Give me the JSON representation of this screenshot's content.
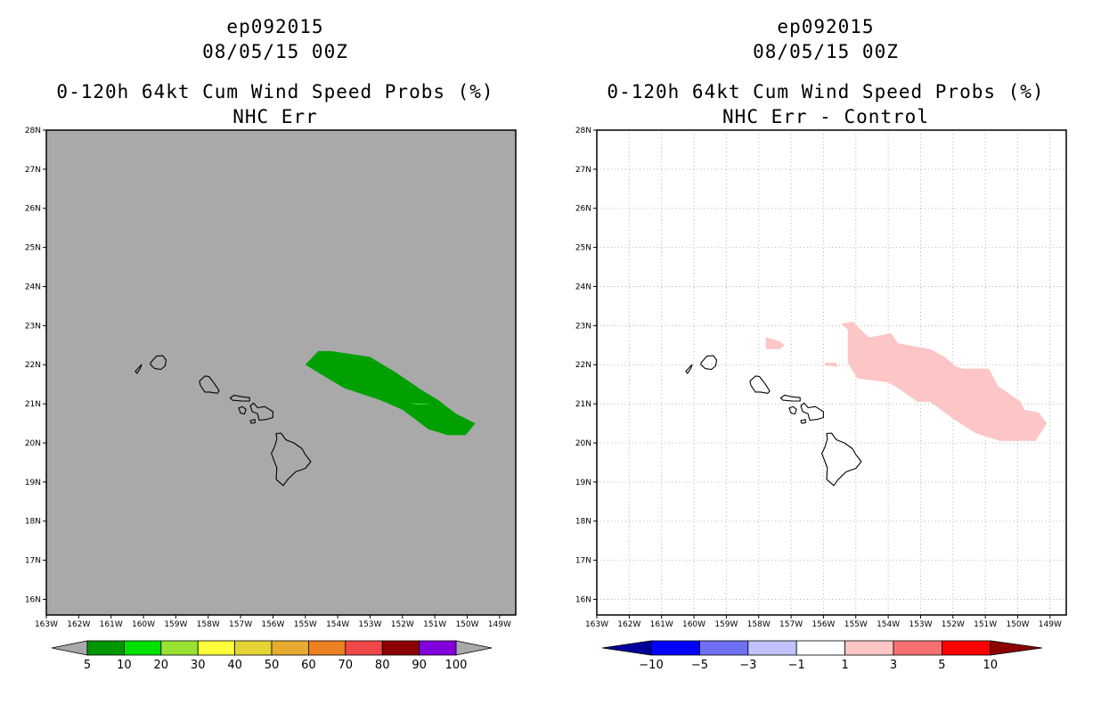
{
  "panels": [
    {
      "title_line1": "ep092015",
      "title_line2": "08/05/15 00Z",
      "title_line3": "0-120h 64kt Cum Wind Speed Probs (%)",
      "title_line4": "NHC Err",
      "background_color": "#a9a9a9",
      "gridlines": false,
      "swath_color": "#00a000",
      "colorbar": {
        "colors": [
          "#009600",
          "#00e100",
          "#98e234",
          "#ffff3a",
          "#e6d436",
          "#e6ab30",
          "#ec8122",
          "#f04848",
          "#8c0000",
          "#8200dc"
        ],
        "end_color": "#a9a9a9",
        "labels": [
          "5",
          "10",
          "20",
          "30",
          "40",
          "50",
          "60",
          "70",
          "80",
          "90",
          "100"
        ]
      }
    },
    {
      "title_line1": "ep092015",
      "title_line2": "08/05/15 00Z",
      "title_line3": "0-120h 64kt Cum Wind Speed Probs (%)",
      "title_line4": "NHC Err - Control",
      "background_color": "#ffffff",
      "gridlines": true,
      "swath_color": "#fcc6c6",
      "colorbar": {
        "colors": [
          "#0000ff",
          "#6f6ff4",
          "#c2c2ff",
          "#ffffff",
          "#fcc6c6",
          "#f87070",
          "#ff0000"
        ],
        "end_color_left": "#00009a",
        "end_color_right": "#8c0000",
        "labels": [
          "-10",
          "-5",
          "-3",
          "-1",
          "1",
          "3",
          "5",
          "10"
        ]
      }
    }
  ],
  "map": {
    "lat_labels": [
      "28N",
      "27N",
      "26N",
      "25N",
      "24N",
      "23N",
      "22N",
      "21N",
      "20N",
      "19N",
      "18N",
      "17N",
      "16N"
    ],
    "lon_labels": [
      "163W",
      "162W",
      "161W",
      "160W",
      "159W",
      "158W",
      "157W",
      "156W",
      "155W",
      "154W",
      "153W",
      "152W",
      "151W",
      "150W",
      "149W"
    ],
    "lat_range": [
      15.6,
      28.0
    ],
    "lon_range": [
      -163.0,
      -148.5
    ]
  }
}
